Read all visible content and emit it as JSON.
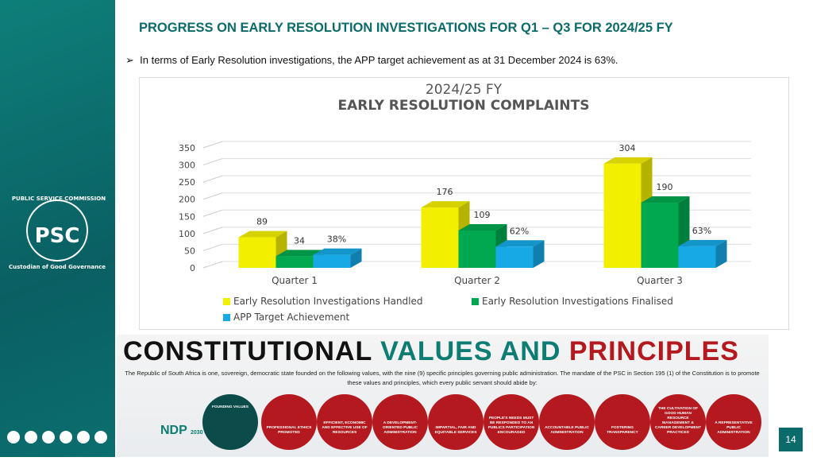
{
  "header": {
    "title": "PROGRESS ON EARLY RESOLUTION INVESTIGATIONS FOR Q1 – Q3 FOR 2024/25 FY",
    "bullet": "In terms of Early Resolution investigations, the APP target achievement as at 31 December 2024 is 63%."
  },
  "logo": {
    "arc": "PUBLIC SERVICE COMMISSION",
    "mark": "PSC",
    "tagline": "Custodian of Good Governance"
  },
  "chart_data": {
    "type": "bar",
    "title": "2024/25 FY",
    "subtitle": "EARLY RESOLUTION COMPLAINTS",
    "categories": [
      "Quarter 1",
      "Quarter 2",
      "Quarter 3"
    ],
    "series": [
      {
        "name": "Early Resolution Investigations Handled",
        "color": "#f2ef00",
        "values": [
          89,
          176,
          304
        ]
      },
      {
        "name": "Early Resolution Investigations Finalised",
        "color": "#00a84f",
        "values": [
          34,
          109,
          190
        ]
      },
      {
        "name": "APP Target Achievement",
        "color": "#17a9e6",
        "values": [
          38,
          62,
          63
        ],
        "value_labels": [
          "38%",
          "62%",
          "63%"
        ]
      }
    ],
    "ylim": [
      0,
      350
    ],
    "yticks": [
      0,
      50,
      100,
      150,
      200,
      250,
      300,
      350
    ],
    "grid": true
  },
  "banner": {
    "title": [
      "CONSTITUTIONAL",
      "VALUES AND",
      "PRINCIPLES"
    ],
    "text": "The Republic of South Africa is one, sovereign, democratic state founded on the following values, with the nine (9) specific principles governing public administration. The mandate of the PSC in Section 195 (1) of the Constitution is to promote these values and principles, which every public servant should abide by:",
    "founding": "FOUNDING VALUES",
    "ndp": "NDP",
    "ndp_year": "2030",
    "principles": [
      "PROFESSIONAL ETHICS PROMOTED",
      "EFFICIENT, ECONOMIC AND EFFECTIVE USE OF RESOURCES",
      "A DEVELOPMENT-ORIENTED PUBLIC ADMINISTRATION",
      "IMPARTIAL, FAIR AND EQUITABLE SERVICES",
      "PEOPLE'S NEEDS MUST BE RESPONDED TO AN PUBLICS PARTICIPATION ENCOURAGED",
      "ACCOUNTABLE PUBLIC ADMINISTRATION",
      "FOSTERING TRANSPARENCY",
      "THE CULTIVATION OF GOOD HUMAN RESOURCE MANAGEMENT & CAREER DEVELOPMENT PRACTICES",
      "A REPRESENTATIVE PUBLIC ADMINISTRATION"
    ]
  },
  "page_number": "14"
}
